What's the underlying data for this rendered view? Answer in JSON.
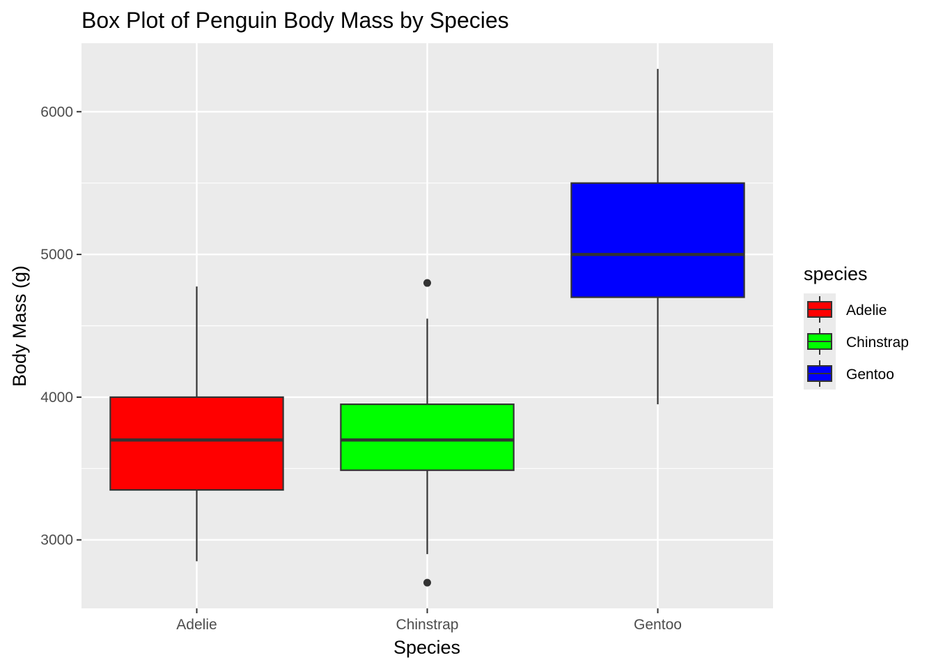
{
  "chart_data": {
    "type": "boxplot",
    "title": "Box Plot of Penguin Body Mass by Species",
    "xlabel": "Species",
    "ylabel": "Body Mass (g)",
    "ylim": [
      2520,
      6480
    ],
    "y_ticks": [
      3000,
      4000,
      5000,
      6000
    ],
    "y_tick_labels": [
      "3000",
      "4000",
      "5000",
      "6000"
    ],
    "grid": true,
    "legend": {
      "title": "species",
      "placement": "right"
    },
    "colors": {
      "panel": "#ebebeb",
      "grid": "#ffffff",
      "box_line": "#333333",
      "tick_label": "#4d4d4d"
    },
    "categories": [
      "Adelie",
      "Chinstrap",
      "Gentoo"
    ],
    "series": [
      {
        "name": "Adelie",
        "color": "#ff0000",
        "whisker_low": 2850,
        "q1": 3350,
        "median": 3700,
        "q3": 4000,
        "whisker_high": 4775,
        "outliers": []
      },
      {
        "name": "Chinstrap",
        "color": "#00ff00",
        "whisker_low": 2900,
        "q1": 3488,
        "median": 3700,
        "q3": 3950,
        "whisker_high": 4550,
        "outliers": [
          2700,
          4800
        ]
      },
      {
        "name": "Gentoo",
        "color": "#0000ff",
        "whisker_low": 3950,
        "q1": 4700,
        "median": 5000,
        "q3": 5500,
        "whisker_high": 6300,
        "outliers": []
      }
    ]
  }
}
